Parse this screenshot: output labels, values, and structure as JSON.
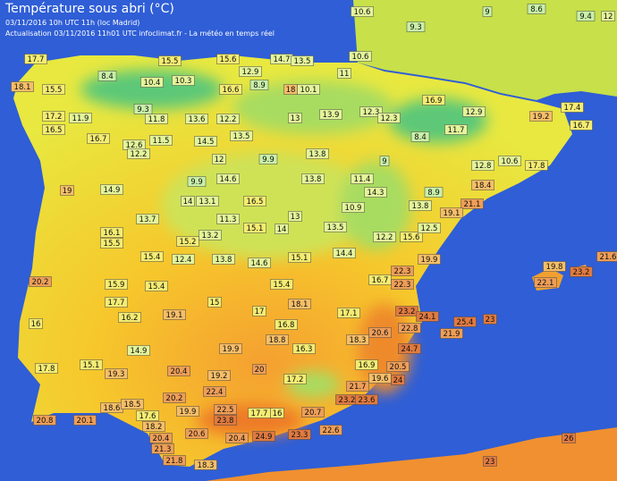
{
  "header": {
    "title": "Température sous abri (°C)",
    "line1": "03/11/2016  10h UTC  11h (loc Madrid)",
    "line2": "Actualisation 03/11/2016 11h01 UTC  infoclimat.fr - La météo en temps réel"
  },
  "readings": [
    17.7,
    18.1,
    15.5,
    8.4,
    15.5,
    10.3,
    10.4,
    9.3,
    11.8,
    13.6,
    12.2,
    15.6,
    16.6,
    12.9,
    8.9,
    14.7,
    13.5,
    18,
    10.1,
    11,
    10.6,
    10.6,
    9.3,
    9,
    8.6,
    9.4,
    12,
    17.2,
    16.5,
    11.9,
    16.7,
    12.6,
    11.5,
    14.5,
    13.5,
    13,
    13.9,
    12.3,
    12.3,
    16.9,
    12.9,
    19.2,
    17.4,
    16.7,
    8.4,
    11.7,
    12.2,
    12,
    9.9,
    13.8,
    9,
    12.8,
    10.6,
    17.8,
    19,
    14.9,
    9.9,
    14.6,
    13.8,
    11.4,
    8.9,
    18.4,
    21.1,
    19.1,
    14,
    13.1,
    13.7,
    11.3,
    16.5,
    13,
    10.9,
    14.3,
    13.8,
    16.1,
    15.5,
    15.2,
    13.2,
    15.1,
    14,
    13.5,
    12.2,
    15.6,
    12.5,
    15.4,
    12.4,
    13.8,
    14.6,
    15.1,
    14.4,
    19.9,
    19.8,
    23.2,
    22.1,
    21.6,
    20.2,
    15.9,
    15.4,
    15.4,
    16.7,
    22.3,
    22.3,
    17.7,
    16.2,
    19.1,
    15,
    17,
    18.1,
    17.1,
    23.2,
    24.1,
    25.4,
    23,
    16,
    16.8,
    20.6,
    22.8,
    21.9,
    14.9,
    19.9,
    18.8,
    16.3,
    18.3,
    24.7,
    17.8,
    15.1,
    20.4,
    19.2,
    20,
    17.2,
    16.9,
    20.5,
    19.6,
    19.3,
    24,
    22.4,
    21.7,
    20.8,
    20.1,
    18.6,
    18.5,
    17.6,
    18.2,
    19.9,
    20.2,
    22.5,
    23.8,
    17.7,
    16,
    20.7,
    23.2,
    23.6,
    20.4,
    20.6,
    20.4,
    24.9,
    23.3,
    22.6,
    21.3,
    21.8,
    18.3,
    23,
    26
  ]
}
